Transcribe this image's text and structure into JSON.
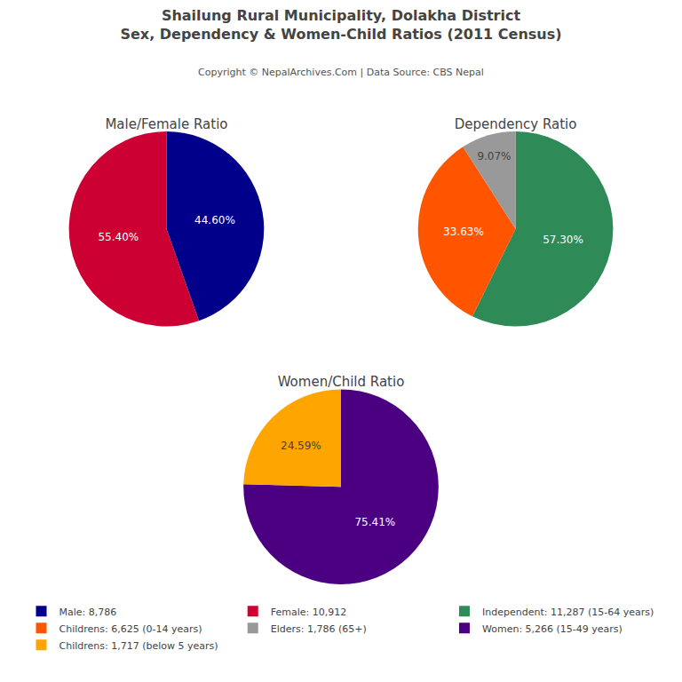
{
  "title": "Shailung Rural Municipality, Dolakha District",
  "subtitle": "Sex, Dependency & Women-Child Ratios (2011 Census)",
  "annotations": [
    "Copyright © NepalArchives.Com | Data Source: CBS Nepal"
  ],
  "legend": "bottom",
  "chart_data": [
    {
      "type": "pie",
      "title": "Male/Female Ratio",
      "categories": [
        "Male: 8,786",
        "Female: 10,912"
      ],
      "values": [
        44.6,
        55.4
      ],
      "value_labels": [
        "44.60%",
        "55.40%"
      ],
      "colors": [
        "#00008B",
        "#CC0033"
      ],
      "data_labels": true
    },
    {
      "type": "pie",
      "title": "Dependency Ratio",
      "categories": [
        "Independent: 11,287 (15-64 years)",
        "Childrens: 6,625 (0-14 years)",
        "Elders: 1,786 (65+)"
      ],
      "values": [
        57.3,
        33.63,
        9.07
      ],
      "value_labels": [
        "57.30%",
        "33.63%",
        "9.07%"
      ],
      "colors": [
        "#2E8B57",
        "#FF5500",
        "#999999"
      ],
      "data_labels": true
    },
    {
      "type": "pie",
      "title": "Women/Child Ratio",
      "categories": [
        "Women: 5,266 (15-49 years)",
        "Childrens: 1,717 (below 5 years)"
      ],
      "values": [
        75.41,
        24.59
      ],
      "value_labels": [
        "75.41%",
        "24.59%"
      ],
      "colors": [
        "#4B0082",
        "#FFA500"
      ],
      "data_labels": true
    }
  ]
}
